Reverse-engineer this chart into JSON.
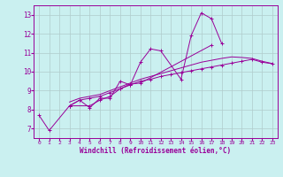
{
  "xlabel": "Windchill (Refroidissement éolien,°C)",
  "bg_color": "#caf0f0",
  "line_color": "#990099",
  "grid_color": "#b0cccc",
  "xlim": [
    -0.5,
    23.5
  ],
  "ylim": [
    6.5,
    13.5
  ],
  "xticks": [
    0,
    1,
    2,
    3,
    4,
    5,
    6,
    7,
    8,
    9,
    10,
    11,
    12,
    13,
    14,
    15,
    16,
    17,
    18,
    19,
    20,
    21,
    22,
    23
  ],
  "yticks": [
    7,
    8,
    9,
    10,
    11,
    12,
    13
  ],
  "series": [
    {
      "x": [
        0,
        1,
        3,
        4,
        5,
        6,
        7,
        8,
        9,
        10,
        11,
        12,
        14,
        15,
        16,
        17,
        18
      ],
      "y": [
        7.7,
        6.9,
        8.2,
        8.5,
        8.1,
        8.6,
        8.6,
        9.5,
        9.3,
        10.5,
        11.2,
        11.1,
        9.6,
        11.9,
        13.1,
        12.8,
        11.5
      ],
      "marker": true
    },
    {
      "x": [
        3,
        5,
        6,
        7,
        8,
        9,
        10,
        17
      ],
      "y": [
        8.2,
        8.2,
        8.5,
        8.7,
        9.1,
        9.35,
        9.4,
        11.4
      ],
      "marker": true
    },
    {
      "x": [
        3,
        4,
        5,
        6,
        7,
        8,
        9,
        10,
        11,
        12,
        13,
        14,
        15,
        16,
        17,
        18,
        19,
        20,
        21,
        22,
        23
      ],
      "y": [
        8.2,
        8.5,
        8.6,
        8.7,
        8.9,
        9.1,
        9.3,
        9.5,
        9.6,
        9.75,
        9.85,
        9.95,
        10.05,
        10.15,
        10.25,
        10.35,
        10.45,
        10.55,
        10.65,
        10.5,
        10.42
      ],
      "marker": true
    },
    {
      "x": [
        3,
        4,
        5,
        6,
        7,
        8,
        9,
        10,
        11,
        12,
        13,
        14,
        15,
        16,
        17,
        18,
        19,
        20,
        21,
        22,
        23
      ],
      "y": [
        8.4,
        8.6,
        8.7,
        8.8,
        9.0,
        9.2,
        9.4,
        9.6,
        9.75,
        9.9,
        10.05,
        10.2,
        10.35,
        10.5,
        10.6,
        10.7,
        10.78,
        10.75,
        10.7,
        10.55,
        10.43
      ],
      "marker": false
    }
  ]
}
